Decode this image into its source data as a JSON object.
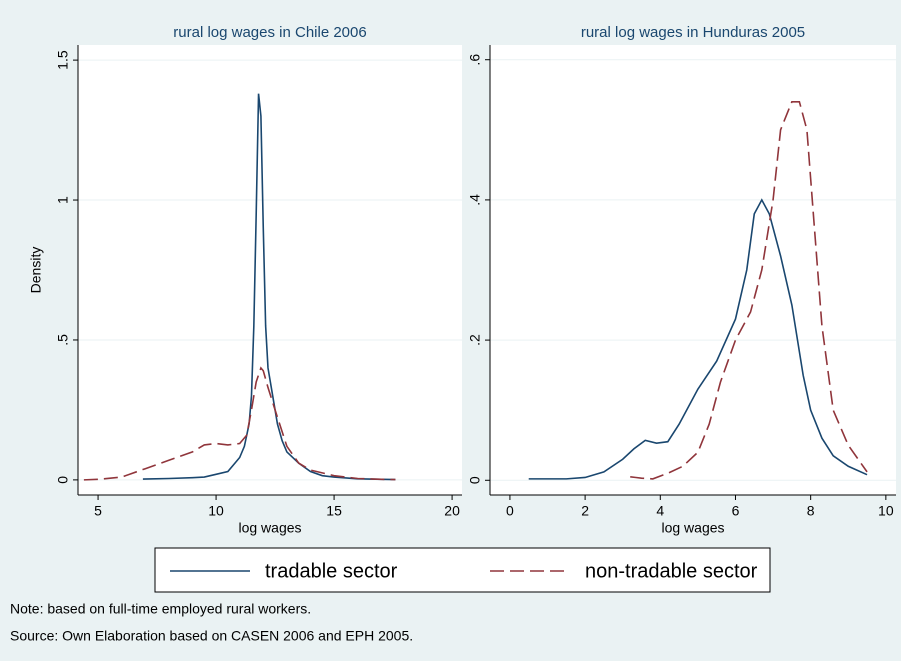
{
  "chart_data": [
    {
      "type": "line",
      "title": "rural log wages in Chile 2006",
      "xlabel": "log wages",
      "ylabel": "Density",
      "xlim": [
        4.15,
        20.42
      ],
      "ylim": [
        -0.054,
        1.554
      ],
      "xticks": [
        5,
        10,
        15,
        20
      ],
      "yticks": [
        0,
        {
          "value": 0.5,
          "label": ".5"
        },
        1,
        1.5
      ],
      "grid": true,
      "series": [
        {
          "name": "tradable sector",
          "color": "#1a476f",
          "dash": false,
          "x": [
            6.9,
            8,
            9,
            9.5,
            10,
            10.5,
            10.8,
            11,
            11.2,
            11.4,
            11.5,
            11.6,
            11.7,
            11.8,
            11.9,
            12.0,
            12.1,
            12.2,
            12.4,
            12.6,
            12.8,
            13,
            13.5,
            14,
            14.5,
            15,
            16,
            17,
            17.6
          ],
          "values": [
            0.003,
            0.005,
            0.008,
            0.01,
            0.02,
            0.03,
            0.06,
            0.08,
            0.12,
            0.2,
            0.3,
            0.55,
            0.95,
            1.38,
            1.3,
            0.9,
            0.55,
            0.4,
            0.3,
            0.2,
            0.14,
            0.1,
            0.06,
            0.03,
            0.015,
            0.01,
            0.004,
            0.002,
            0.001
          ]
        },
        {
          "name": "non-tradable sector",
          "color": "#90353b",
          "dash": true,
          "x": [
            4.4,
            5,
            6,
            7,
            8,
            9,
            9.5,
            10,
            10.5,
            11,
            11.3,
            11.5,
            11.7,
            11.9,
            12.0,
            12.2,
            12.5,
            13,
            13.5,
            14,
            14.5,
            15,
            16,
            17,
            17.6
          ],
          "values": [
            0,
            0.002,
            0.01,
            0.04,
            0.07,
            0.1,
            0.125,
            0.13,
            0.125,
            0.13,
            0.16,
            0.25,
            0.35,
            0.4,
            0.39,
            0.33,
            0.25,
            0.12,
            0.06,
            0.035,
            0.025,
            0.015,
            0.005,
            0.002,
            0.001
          ]
        }
      ]
    },
    {
      "type": "line",
      "title": "rural log wages in Hunduras 2005",
      "xlabel": "log wages",
      "xlim": [
        -0.53,
        10.27
      ],
      "ylim": [
        -0.021,
        0.621
      ],
      "xticks": [
        0,
        2,
        4,
        6,
        8,
        10
      ],
      "yticks": [
        0,
        {
          "value": 0.2,
          "label": ".2"
        },
        {
          "value": 0.4,
          "label": ".4"
        },
        {
          "value": 0.6,
          "label": ".6"
        }
      ],
      "grid": true,
      "series": [
        {
          "name": "tradable sector",
          "color": "#1a476f",
          "dash": false,
          "x": [
            0.5,
            1,
            1.5,
            2,
            2.5,
            3,
            3.3,
            3.6,
            3.9,
            4.2,
            4.5,
            5,
            5.5,
            6,
            6.3,
            6.5,
            6.7,
            6.9,
            7.2,
            7.5,
            7.8,
            8,
            8.3,
            8.6,
            9,
            9.5
          ],
          "values": [
            0.002,
            0.002,
            0.002,
            0.004,
            0.012,
            0.03,
            0.045,
            0.057,
            0.053,
            0.055,
            0.08,
            0.13,
            0.17,
            0.23,
            0.3,
            0.38,
            0.4,
            0.38,
            0.32,
            0.25,
            0.15,
            0.1,
            0.06,
            0.035,
            0.02,
            0.008
          ]
        },
        {
          "name": "non-tradable sector",
          "color": "#90353b",
          "dash": true,
          "x": [
            3.2,
            3.5,
            3.8,
            4.2,
            4.6,
            5,
            5.3,
            5.6,
            6,
            6.4,
            6.7,
            7,
            7.2,
            7.5,
            7.7,
            7.9,
            8.1,
            8.3,
            8.6,
            9,
            9.5
          ],
          "values": [
            0.005,
            0.003,
            0.002,
            0.01,
            0.02,
            0.04,
            0.08,
            0.14,
            0.2,
            0.24,
            0.3,
            0.4,
            0.5,
            0.54,
            0.54,
            0.5,
            0.36,
            0.22,
            0.1,
            0.05,
            0.012
          ]
        }
      ]
    }
  ],
  "notes": [
    "Note: based on full-time employed rural workers.",
    "Source: Own Elaboration based on CASEN 2006 and EPH 2005."
  ]
}
